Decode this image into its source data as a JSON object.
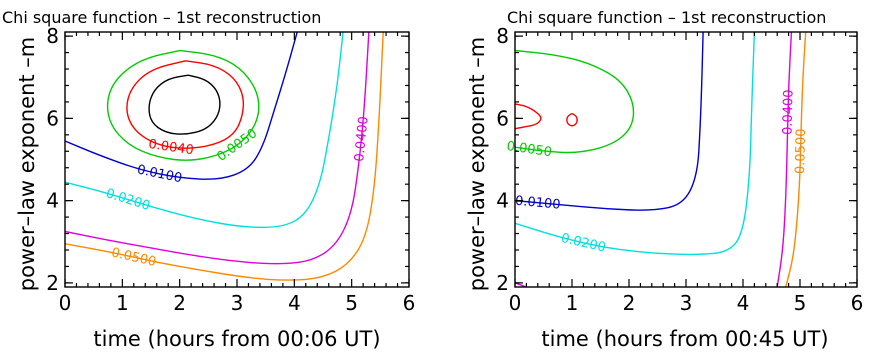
{
  "figure": {
    "background": "#ffffff"
  },
  "chart_data": [
    {
      "type": "contour",
      "title": "Chi square function – 1st reconstruction",
      "xlabel": "time (hours from 00:06 UT)",
      "ylabel": "power–law exponent –m",
      "xlim": [
        0,
        6
      ],
      "ylim": [
        1.9,
        8.1
      ],
      "x_ticks": [
        "0",
        "1",
        "2",
        "3",
        "4",
        "5",
        "6"
      ],
      "y_ticks": [
        "2",
        "4",
        "6",
        "8"
      ],
      "grid": false,
      "contours": [
        {
          "level": null,
          "color": "#000000",
          "label": "",
          "points": [
            [
              2.15,
              7.05
            ],
            [
              2.45,
              6.95
            ],
            [
              2.65,
              6.7
            ],
            [
              2.72,
              6.35
            ],
            [
              2.65,
              6.0
            ],
            [
              2.45,
              5.72
            ],
            [
              2.1,
              5.6
            ],
            [
              1.75,
              5.65
            ],
            [
              1.5,
              5.9
            ],
            [
              1.45,
              6.3
            ],
            [
              1.55,
              6.7
            ],
            [
              1.8,
              6.97
            ],
            [
              2.15,
              7.05
            ]
          ]
        },
        {
          "level": 0.004,
          "color": "#ff0000",
          "label": "0.0040",
          "points": [
            [
              2.1,
              7.4
            ],
            [
              2.6,
              7.3
            ],
            [
              2.95,
              7.0
            ],
            [
              3.12,
              6.55
            ],
            [
              3.1,
              6.05
            ],
            [
              2.95,
              5.6
            ],
            [
              2.6,
              5.35
            ],
            [
              2.1,
              5.25
            ],
            [
              1.6,
              5.35
            ],
            [
              1.2,
              5.7
            ],
            [
              1.05,
              6.2
            ],
            [
              1.15,
              6.75
            ],
            [
              1.5,
              7.2
            ],
            [
              2.1,
              7.4
            ]
          ]
        },
        {
          "level": 0.005,
          "color": "#00cc00",
          "label": "0.0050",
          "points": [
            [
              2.0,
              7.65
            ],
            [
              2.6,
              7.55
            ],
            [
              3.05,
              7.25
            ],
            [
              3.35,
              6.7
            ],
            [
              3.4,
              6.1
            ],
            [
              3.2,
              5.55
            ],
            [
              2.8,
              5.15
            ],
            [
              2.2,
              4.95
            ],
            [
              1.6,
              5.05
            ],
            [
              1.1,
              5.35
            ],
            [
              0.78,
              5.85
            ],
            [
              0.72,
              6.45
            ],
            [
              0.9,
              7.0
            ],
            [
              1.35,
              7.45
            ],
            [
              2.0,
              7.65
            ]
          ]
        },
        {
          "level": 0.01,
          "color": "#0000cc",
          "label": "0.0100",
          "points": [
            [
              0.0,
              5.45
            ],
            [
              0.6,
              5.1
            ],
            [
              1.3,
              4.75
            ],
            [
              2.0,
              4.55
            ],
            [
              2.7,
              4.5
            ],
            [
              3.2,
              4.75
            ],
            [
              3.45,
              5.3
            ],
            [
              3.65,
              6.2
            ],
            [
              3.85,
              7.1
            ],
            [
              4.05,
              8.1
            ]
          ]
        },
        {
          "level": 0.02,
          "color": "#00e0e0",
          "label": "0.0200",
          "points": [
            [
              0.0,
              4.45
            ],
            [
              0.7,
              4.2
            ],
            [
              1.5,
              3.85
            ],
            [
              2.3,
              3.55
            ],
            [
              3.1,
              3.35
            ],
            [
              3.8,
              3.35
            ],
            [
              4.2,
              3.65
            ],
            [
              4.45,
              4.4
            ],
            [
              4.6,
              5.5
            ],
            [
              4.75,
              6.8
            ],
            [
              4.85,
              8.1
            ]
          ]
        },
        {
          "level": 0.04,
          "color": "#e000e0",
          "label": "0.0400",
          "points": [
            [
              0.0,
              3.25
            ],
            [
              0.7,
              3.05
            ],
            [
              1.5,
              2.85
            ],
            [
              2.3,
              2.65
            ],
            [
              3.1,
              2.5
            ],
            [
              3.8,
              2.45
            ],
            [
              4.35,
              2.55
            ],
            [
              4.75,
              2.95
            ],
            [
              5.0,
              3.7
            ],
            [
              5.12,
              4.8
            ],
            [
              5.22,
              6.2
            ],
            [
              5.3,
              8.1
            ]
          ]
        },
        {
          "level": 0.05,
          "color": "#ff8800",
          "label": "0.0500",
          "points": [
            [
              0.0,
              2.95
            ],
            [
              0.8,
              2.75
            ],
            [
              1.6,
              2.5
            ],
            [
              2.4,
              2.3
            ],
            [
              3.2,
              2.12
            ],
            [
              3.9,
              2.05
            ],
            [
              4.5,
              2.12
            ],
            [
              4.95,
              2.45
            ],
            [
              5.25,
              3.1
            ],
            [
              5.4,
              4.3
            ],
            [
              5.48,
              6.0
            ],
            [
              5.55,
              8.1
            ]
          ]
        }
      ]
    },
    {
      "type": "contour",
      "title": "Chi square function – 1st reconstruction",
      "xlabel": "time (hours from 00:45 UT)",
      "ylabel": "power–law exponent –m",
      "xlim": [
        0,
        6
      ],
      "ylim": [
        1.9,
        8.1
      ],
      "x_ticks": [
        "0",
        "1",
        "2",
        "3",
        "4",
        "5",
        "6"
      ],
      "y_ticks": [
        "2",
        "4",
        "6",
        "8"
      ],
      "grid": false,
      "contours": [
        {
          "level": null,
          "color": "#ff0000",
          "label": "",
          "points": [
            [
              0.0,
              6.35
            ],
            [
              0.2,
              6.3
            ],
            [
              0.38,
              6.15
            ],
            [
              0.48,
              6.0
            ],
            [
              0.38,
              5.85
            ],
            [
              0.2,
              5.8
            ],
            [
              0.0,
              5.75
            ]
          ]
        },
        {
          "level": null,
          "color": "#ff0000",
          "label": "",
          "points": [
            [
              1.0,
              6.12
            ],
            [
              1.09,
              6.04
            ],
            [
              1.09,
              5.88
            ],
            [
              1.0,
              5.8
            ],
            [
              0.91,
              5.88
            ],
            [
              0.91,
              6.04
            ],
            [
              1.0,
              6.12
            ]
          ]
        },
        {
          "level": 0.005,
          "color": "#00cc00",
          "label": "0.0050",
          "points": [
            [
              0.0,
              7.65
            ],
            [
              0.7,
              7.55
            ],
            [
              1.3,
              7.35
            ],
            [
              1.85,
              6.95
            ],
            [
              2.1,
              6.35
            ],
            [
              2.05,
              5.75
            ],
            [
              1.7,
              5.35
            ],
            [
              1.1,
              5.15
            ],
            [
              0.5,
              5.2
            ],
            [
              0.0,
              5.3
            ]
          ]
        },
        {
          "level": 0.01,
          "color": "#0000cc",
          "label": "0.0100",
          "points": [
            [
              0.0,
              4.0
            ],
            [
              0.8,
              3.9
            ],
            [
              1.6,
              3.8
            ],
            [
              2.4,
              3.75
            ],
            [
              2.95,
              3.9
            ],
            [
              3.2,
              4.6
            ],
            [
              3.25,
              5.8
            ],
            [
              3.28,
              7.0
            ],
            [
              3.3,
              8.1
            ]
          ]
        },
        {
          "level": 0.02,
          "color": "#00e0e0",
          "label": "0.0200",
          "points": [
            [
              0.0,
              3.45
            ],
            [
              0.8,
              3.1
            ],
            [
              1.6,
              2.85
            ],
            [
              2.4,
              2.72
            ],
            [
              3.2,
              2.68
            ],
            [
              3.75,
              2.75
            ],
            [
              4.0,
              3.2
            ],
            [
              4.12,
              4.6
            ],
            [
              4.15,
              6.2
            ],
            [
              4.2,
              8.1
            ]
          ]
        },
        {
          "level": 0.04,
          "color": "#e000e0",
          "label": "0.0400",
          "points": [
            [
              4.6,
              1.9
            ],
            [
              4.7,
              2.8
            ],
            [
              4.75,
              4.0
            ],
            [
              4.78,
              5.5
            ],
            [
              4.8,
              6.8
            ],
            [
              4.85,
              8.1
            ]
          ]
        },
        {
          "level": null,
          "color": "#e000e0",
          "label": "",
          "points": [
            [
              0.0,
              2.0
            ],
            [
              0.2,
              1.9
            ]
          ]
        },
        {
          "level": 0.05,
          "color": "#ff8800",
          "label": "0.0500",
          "points": [
            [
              4.75,
              1.9
            ],
            [
              4.88,
              2.6
            ],
            [
              4.95,
              3.5
            ],
            [
              5.0,
              4.6
            ],
            [
              5.02,
              5.8
            ],
            [
              5.05,
              7.0
            ],
            [
              5.1,
              8.1
            ]
          ]
        }
      ]
    }
  ]
}
